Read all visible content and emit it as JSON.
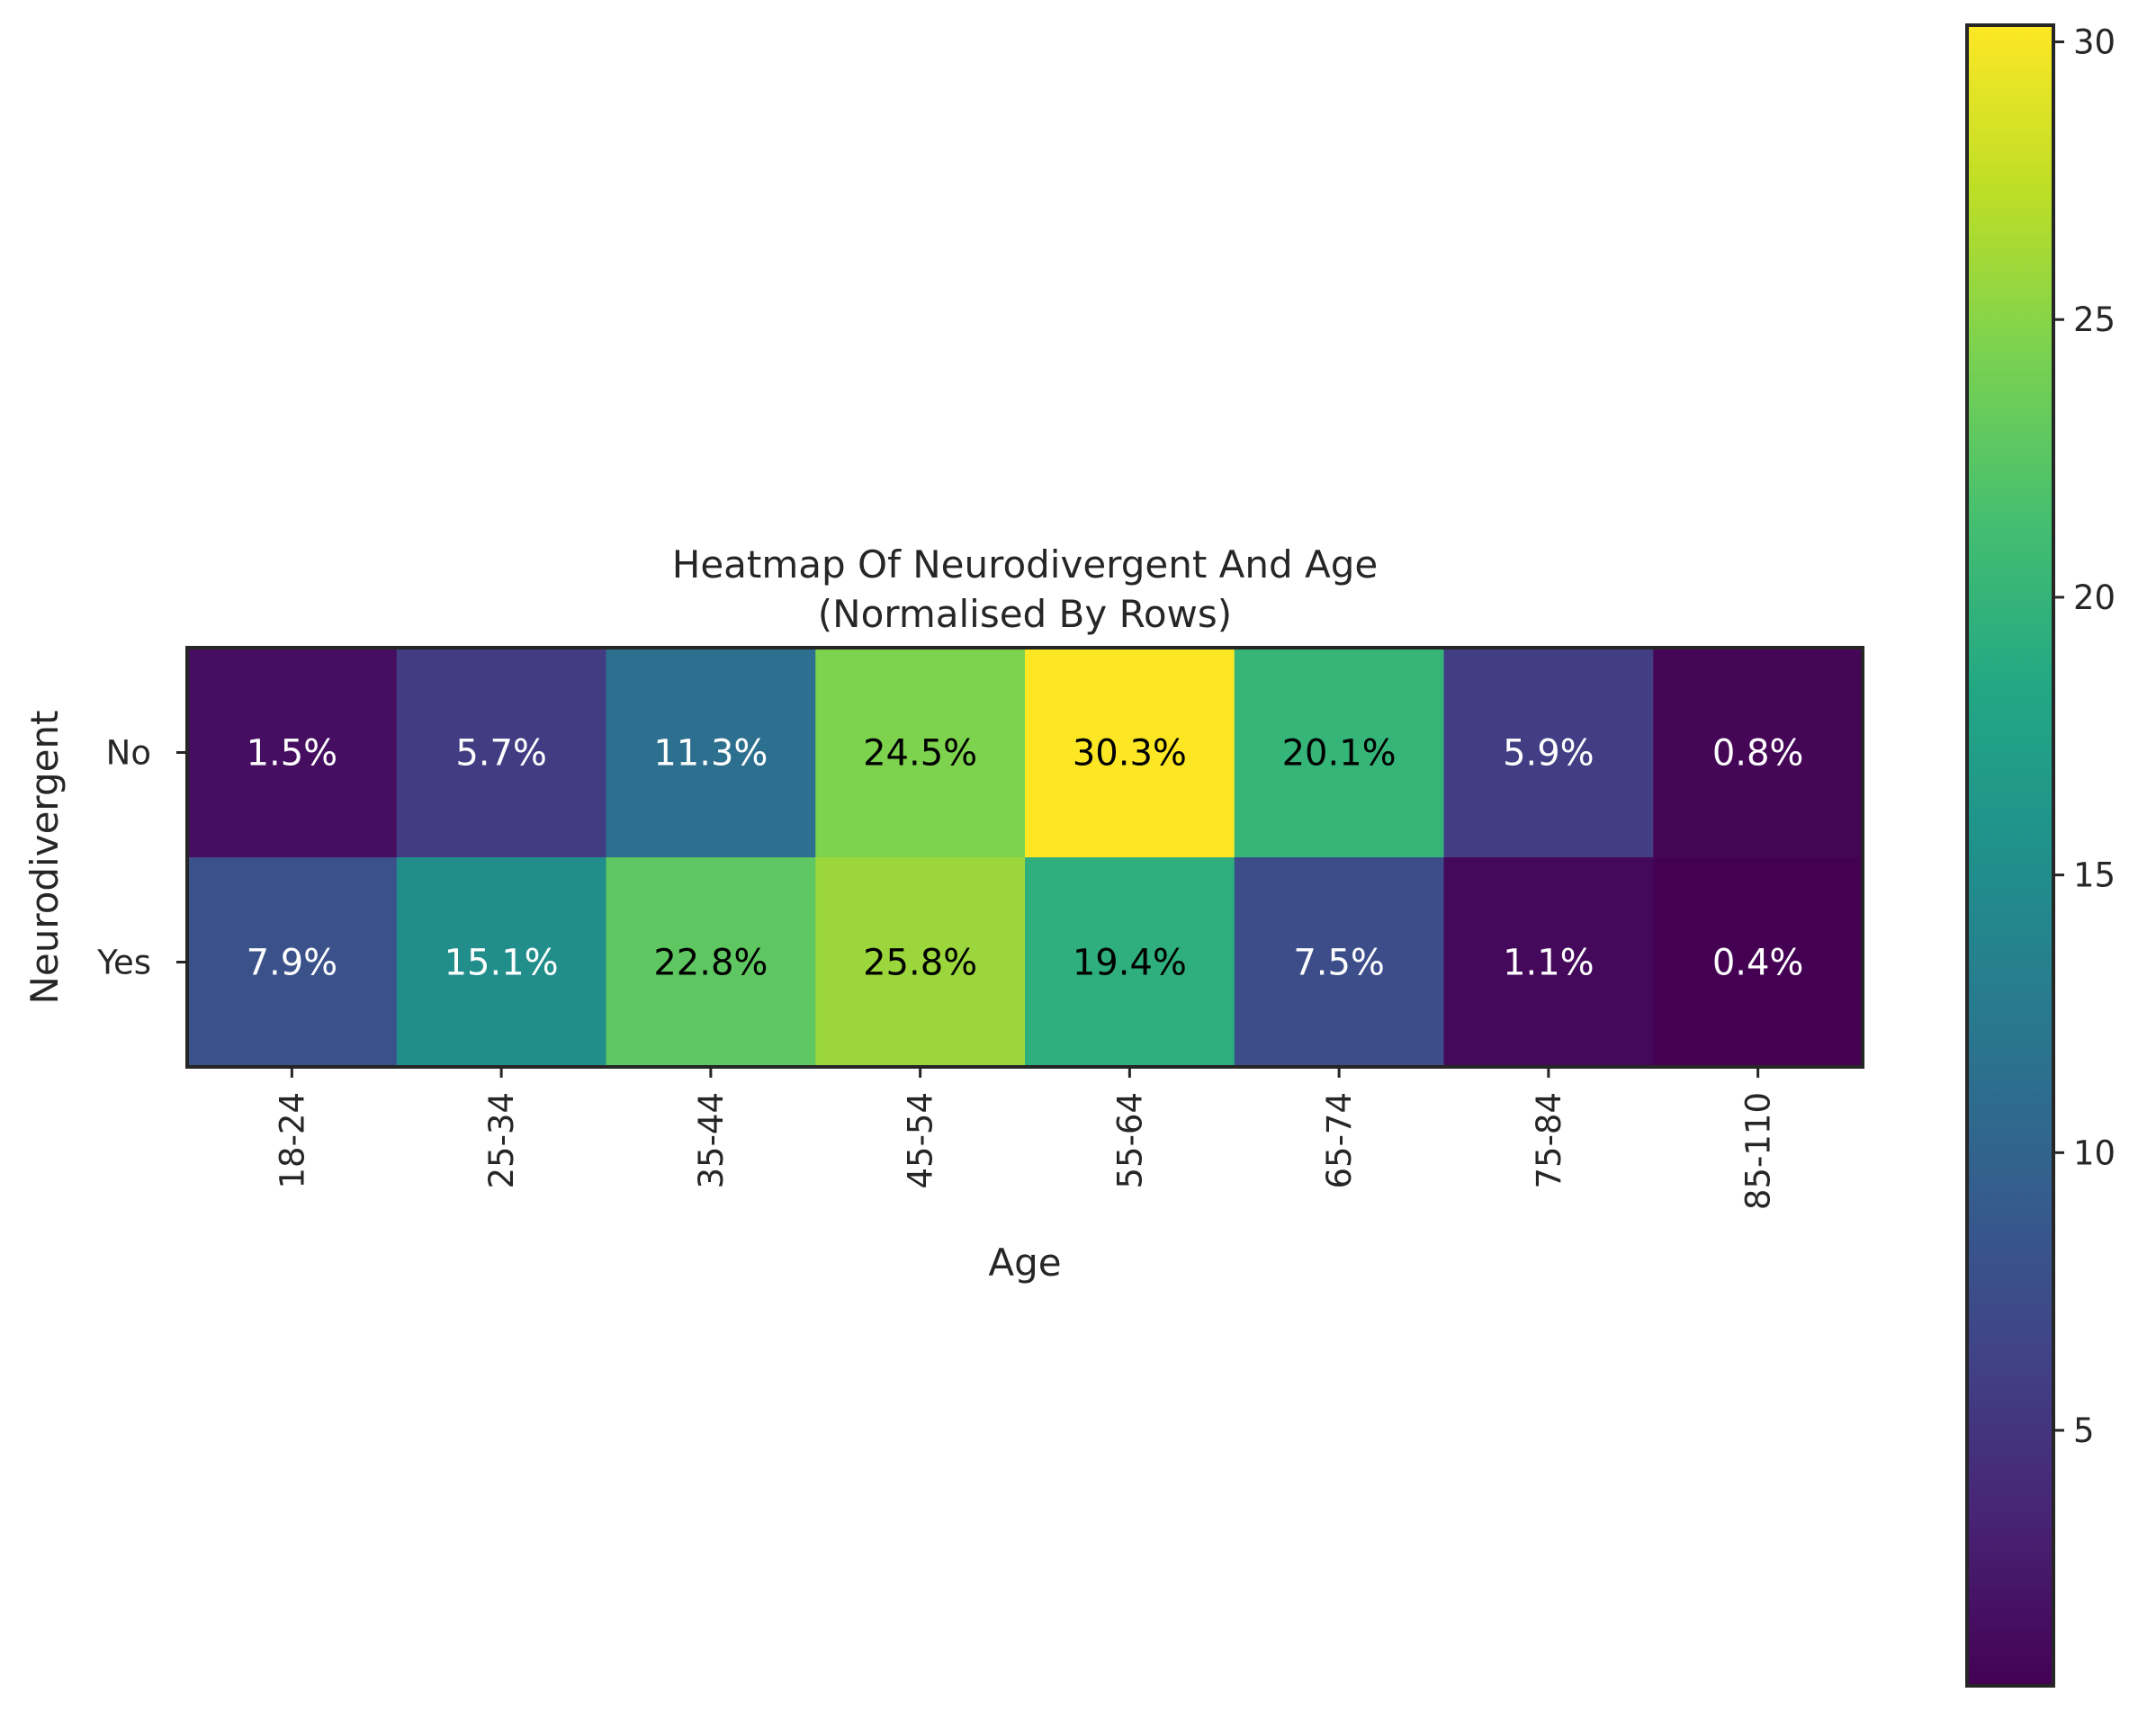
{
  "chart_data": {
    "type": "heatmap",
    "title": "Heatmap Of Neurodivergent And Age",
    "subtitle": "(Normalised By Rows)",
    "xlabel": "Age",
    "ylabel": "Neurodivergent",
    "x_categories": [
      "18-24",
      "25-34",
      "35-44",
      "45-54",
      "55-64",
      "65-74",
      "75-84",
      "85-110"
    ],
    "y_categories": [
      "No",
      "Yes"
    ],
    "values": [
      [
        1.5,
        5.7,
        11.3,
        24.5,
        30.3,
        20.1,
        5.9,
        0.8
      ],
      [
        7.9,
        15.1,
        22.8,
        25.8,
        19.4,
        7.5,
        1.1,
        0.4
      ]
    ],
    "cell_labels": [
      [
        "1.5%",
        "5.7%",
        "11.3%",
        "24.5%",
        "30.3%",
        "20.1%",
        "5.9%",
        "0.8%"
      ],
      [
        "7.9%",
        "15.1%",
        "22.8%",
        "25.8%",
        "19.4%",
        "7.5%",
        "1.1%",
        "0.4%"
      ]
    ],
    "colormap": "viridis",
    "colorbar": {
      "range": [
        0.4,
        30.3
      ],
      "ticks": [
        5,
        10,
        15,
        20,
        25,
        30
      ],
      "tick_labels": [
        "5",
        "10",
        "15",
        "20",
        "25",
        "30"
      ]
    },
    "grid": false,
    "label_colors": {
      "dark_cell": "#ffffff",
      "light_cell": "#000000"
    }
  }
}
